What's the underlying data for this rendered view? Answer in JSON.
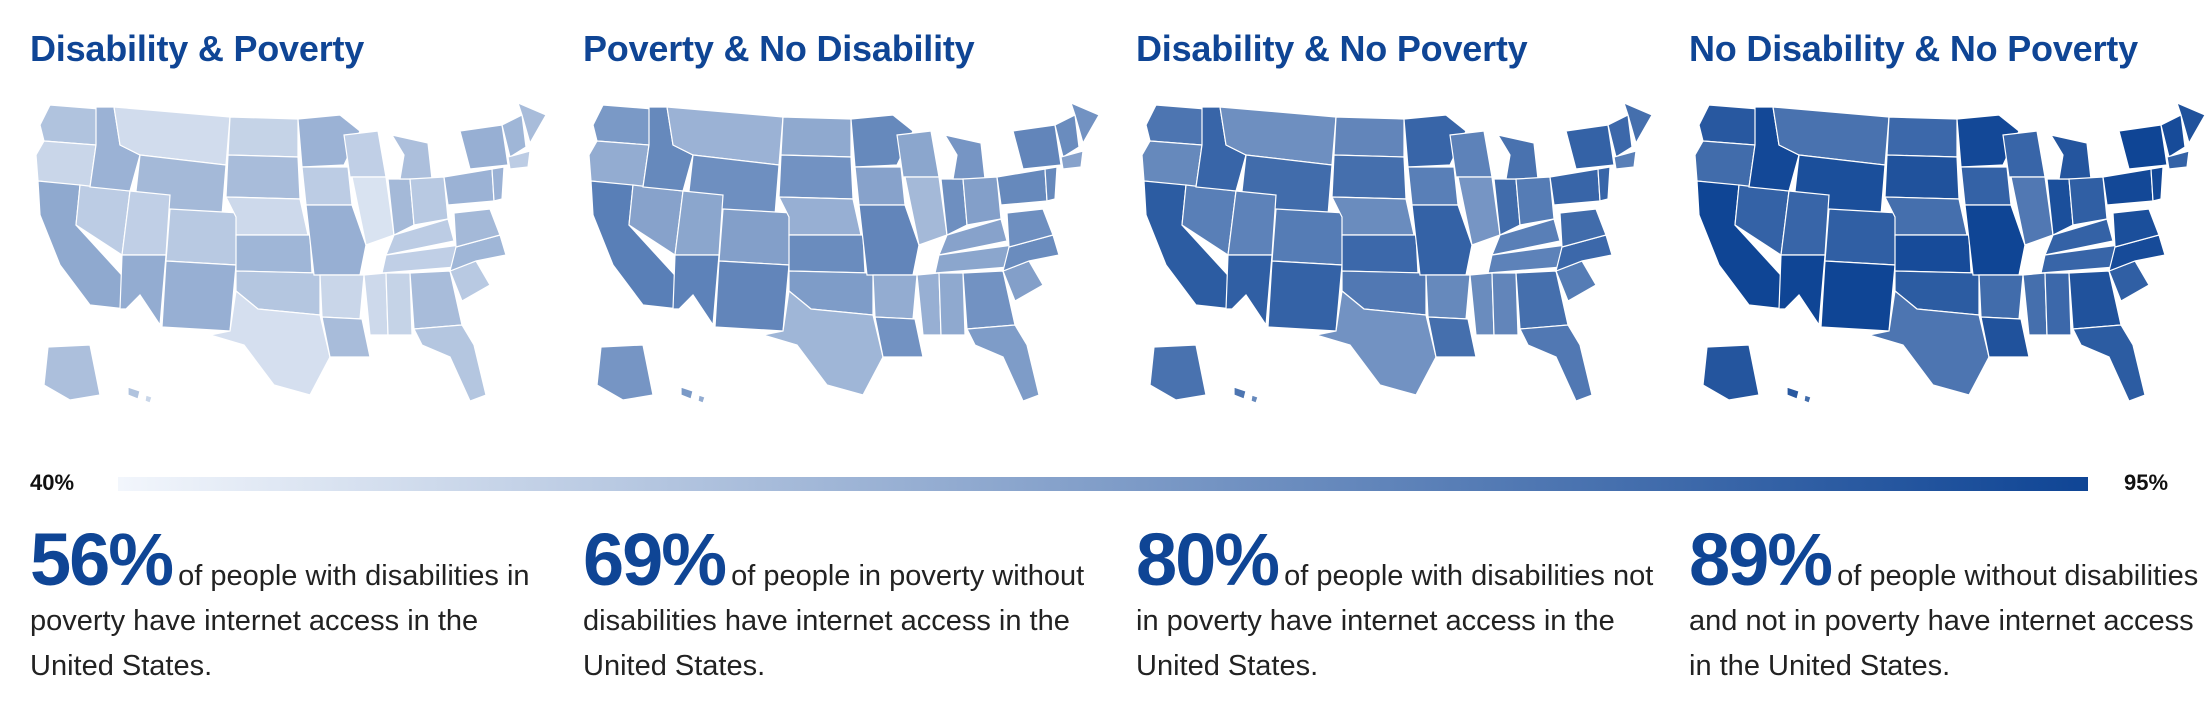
{
  "panels": [
    {
      "title": "Disability & Poverty",
      "percent": "56%",
      "description": "of people with disabilities in poverty have internet access in the United States.",
      "map_value": 56
    },
    {
      "title": "Poverty & No Disability",
      "percent": "69%",
      "description": "of people in poverty without disabilities have internet access in the United States.",
      "map_value": 69
    },
    {
      "title": "Disability & No Poverty",
      "percent": "80%",
      "description": "of people with disabilities not in poverty have internet access in the United States.",
      "map_value": 80
    },
    {
      "title": "No Disability & No Poverty",
      "percent": "89%",
      "description": "of people without disabilities and not in poverty have internet access in the United States.",
      "map_value": 89
    }
  ],
  "legend": {
    "min_label": "40%",
    "max_label": "95%",
    "min_value": 40,
    "max_value": 95,
    "color_low": "#f2f6fc",
    "color_high": "#0f4595"
  },
  "colors": {
    "title": "#0f4595",
    "stroke": "#ffffff"
  }
}
